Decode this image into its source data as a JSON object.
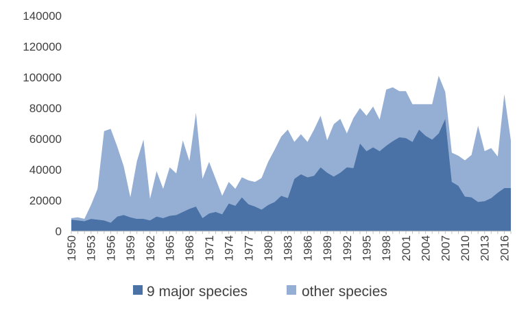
{
  "chart_data": {
    "type": "area",
    "stacked": true,
    "x_start": 1950,
    "x_end": 2017,
    "x_tick_labels": [
      "1950",
      "1953",
      "1956",
      "1959",
      "1962",
      "1965",
      "1968",
      "1971",
      "1974",
      "1977",
      "1980",
      "1983",
      "1986",
      "1989",
      "1992",
      "1995",
      "1998",
      "2001",
      "2004",
      "2007",
      "2010",
      "2013",
      "2016"
    ],
    "ylim": [
      0,
      140000
    ],
    "y_tick_labels": [
      "0",
      "20000",
      "40000",
      "60000",
      "80000",
      "100000",
      "120000",
      "140000"
    ],
    "grid": false,
    "legend_position": "bottom",
    "series": [
      {
        "name": "9 major species",
        "color": "#4a72a6",
        "values": [
          7500,
          7000,
          6500,
          8000,
          7500,
          7000,
          5500,
          9500,
          10500,
          9000,
          8000,
          8000,
          7000,
          9500,
          8500,
          10000,
          10500,
          12500,
          14500,
          16000,
          8500,
          11500,
          12500,
          11000,
          18000,
          16500,
          22000,
          17500,
          16000,
          14000,
          17000,
          19000,
          23000,
          21500,
          34000,
          37000,
          35000,
          36000,
          41500,
          38000,
          35500,
          38000,
          41500,
          41000,
          57000,
          52000,
          54500,
          52000,
          55500,
          58500,
          61000,
          60500,
          58000,
          66000,
          62000,
          59500,
          63500,
          73000,
          32000,
          29500,
          22500,
          22000,
          19000,
          19500,
          21500,
          25000,
          28000,
          28000
        ]
      },
      {
        "name": "other species",
        "color": "#95aed4",
        "values": [
          1000,
          2000,
          1500,
          9000,
          20000,
          58000,
          61000,
          45500,
          31500,
          13000,
          37500,
          51500,
          14000,
          29500,
          19000,
          31500,
          27000,
          46500,
          31000,
          61000,
          25500,
          33500,
          21500,
          12000,
          14000,
          11000,
          13000,
          15500,
          16000,
          20500,
          28000,
          34000,
          38500,
          44500,
          24000,
          26000,
          23000,
          30000,
          33500,
          21000,
          34000,
          35000,
          22000,
          32500,
          23000,
          23000,
          26500,
          20500,
          36500,
          35000,
          30000,
          30500,
          24500,
          16500,
          20500,
          23000,
          37500,
          17500,
          19000,
          19500,
          23500,
          27500,
          49500,
          32500,
          32500,
          23500,
          61000,
          31000
        ]
      }
    ]
  },
  "legend": {
    "items": [
      {
        "label": "9 major species",
        "color": "#4a72a6"
      },
      {
        "label": "other species",
        "color": "#95aed4"
      }
    ]
  }
}
